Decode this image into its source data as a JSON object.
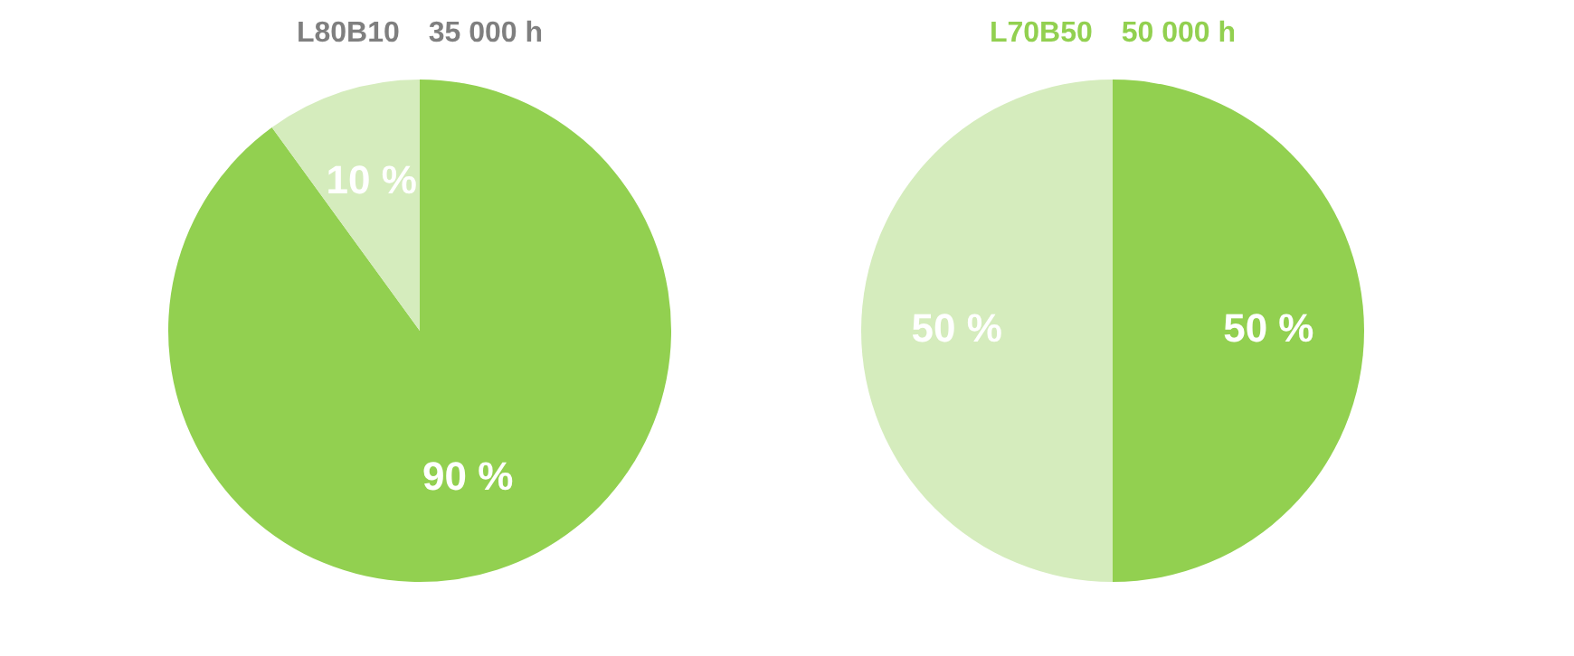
{
  "chart_data": [
    {
      "type": "pie",
      "title": "L80B10",
      "subtitle": "35 000 h",
      "categories": [
        null,
        null
      ],
      "values": [
        90,
        10
      ],
      "colors": [
        "#92d050",
        "#d5ecbd"
      ],
      "value_labels": [
        "90 %",
        "10 %"
      ],
      "legend": false
    },
    {
      "type": "pie",
      "title": "L70B50",
      "subtitle": "50 000 h",
      "categories": [
        null,
        null
      ],
      "values": [
        50,
        50
      ],
      "colors": [
        "#92d050",
        "#d5ecbd"
      ],
      "value_labels": [
        "50 %",
        "50 %"
      ],
      "legend": false
    }
  ]
}
